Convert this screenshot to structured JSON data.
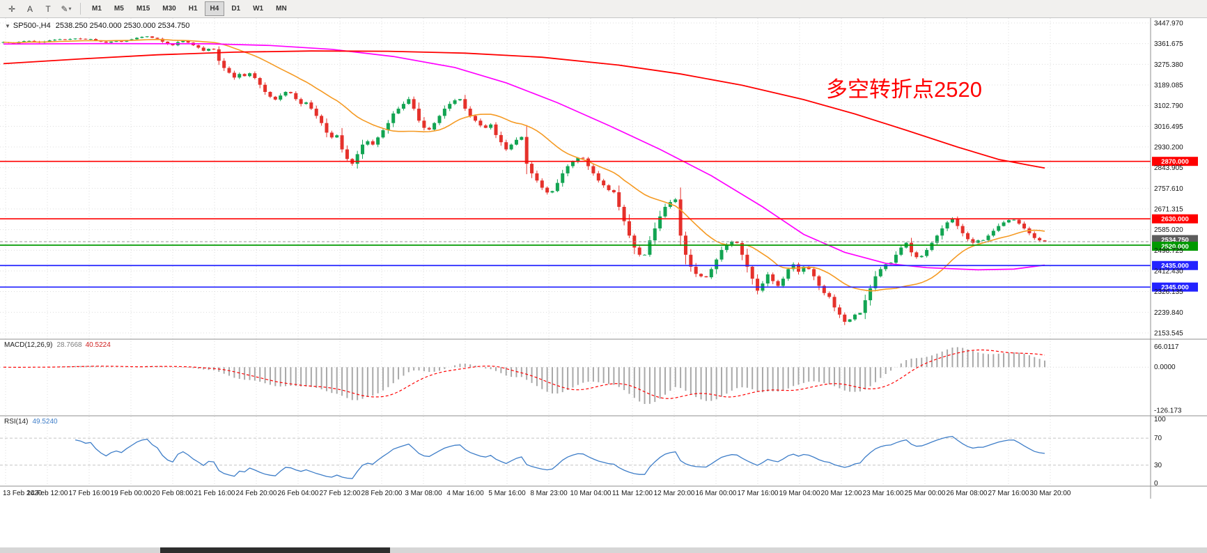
{
  "toolbar": {
    "tools": [
      {
        "name": "crosshair",
        "glyph": "✛"
      },
      {
        "name": "annotate-a",
        "glyph": "A"
      },
      {
        "name": "annotate-t",
        "glyph": "T"
      },
      {
        "name": "draw-pencil",
        "glyph": "✎"
      }
    ],
    "timeframes": [
      "M1",
      "M5",
      "M15",
      "M30",
      "H1",
      "H4",
      "D1",
      "W1",
      "MN"
    ],
    "active_timeframe": "H4"
  },
  "chart_data": {
    "type": "candlestick",
    "symbol_title": "SP500-,H4",
    "ohlc_text": "2538.250 2540.000 2530.000 2534.750",
    "ohlc": {
      "open": 2538.25,
      "high": 2540.0,
      "low": 2530.0,
      "close": 2534.75
    },
    "annotation": {
      "text": "多空转折点2520",
      "color": "#ff0000"
    },
    "y_axis": {
      "max": 3447.97,
      "min": 2153.545,
      "ticks": [
        "3447.970",
        "3361.675",
        "3275.380",
        "3189.085",
        "3102.790",
        "3016.495",
        "2930.200",
        "2843.905",
        "2757.610",
        "2671.315",
        "2585.020",
        "2498.725",
        "2412.430",
        "2326.135",
        "2239.840",
        "2153.545"
      ]
    },
    "x_labels": [
      "13 Feb 2020",
      "14 Feb 12:00",
      "17 Feb 16:00",
      "19 Feb 00:00",
      "20 Feb 08:00",
      "21 Feb 16:00",
      "24 Feb 20:00",
      "26 Feb 04:00",
      "27 Feb 12:00",
      "28 Feb 20:00",
      "3 Mar 08:00",
      "4 Mar 16:00",
      "5 Mar 16:00",
      "8 Mar 23:00",
      "10 Mar 04:00",
      "11 Mar 12:00",
      "12 Mar 20:00",
      "16 Mar 00:00",
      "17 Mar 16:00",
      "19 Mar 04:00",
      "20 Mar 12:00",
      "23 Mar 16:00",
      "25 Mar 00:00",
      "26 Mar 08:00",
      "27 Mar 16:00",
      "30 Mar 20:00"
    ],
    "first_open": 3365,
    "closes": [
      3368,
      3365,
      3362,
      3369,
      3372,
      3373,
      3370,
      3366,
      3371,
      3375,
      3378,
      3380,
      3379,
      3381,
      3383,
      3382,
      3380,
      3381,
      3375,
      3370,
      3366,
      3370,
      3372,
      3370,
      3375,
      3380,
      3386,
      3390,
      3392,
      3386,
      3382,
      3370,
      3360,
      3355,
      3368,
      3373,
      3366,
      3355,
      3345,
      3332,
      3340,
      3338,
      3290,
      3260,
      3240,
      3220,
      3235,
      3226,
      3238,
      3218,
      3190,
      3160,
      3140,
      3128,
      3145,
      3160,
      3155,
      3130,
      3110,
      3116,
      3090,
      3060,
      3030,
      2990,
      2970,
      2979,
      2920,
      2880,
      2860,
      2900,
      2940,
      2954,
      2940,
      2970,
      3000,
      3030,
      3070,
      3090,
      3110,
      3130,
      3090,
      3040,
      3010,
      3003,
      3030,
      3060,
      3090,
      3110,
      3125,
      3130,
      3090,
      3060,
      3040,
      3020,
      3010,
      3024,
      2980,
      2950,
      2920,
      2940,
      2960,
      2972,
      2860,
      2820,
      2790,
      2760,
      2740,
      2746,
      2780,
      2820,
      2850,
      2870,
      2885,
      2882,
      2850,
      2820,
      2790,
      2770,
      2750,
      2741,
      2680,
      2620,
      2560,
      2510,
      2480,
      2480,
      2540,
      2590,
      2640,
      2680,
      2700,
      2711,
      2560,
      2480,
      2430,
      2400,
      2390,
      2386,
      2420,
      2460,
      2500,
      2520,
      2535,
      2529,
      2480,
      2430,
      2380,
      2330,
      2360,
      2398,
      2370,
      2350,
      2380,
      2420,
      2440,
      2409,
      2430,
      2420,
      2390,
      2350,
      2320,
      2304,
      2260,
      2230,
      2200,
      2210,
      2230,
      2237,
      2290,
      2340,
      2390,
      2420,
      2440,
      2447,
      2480,
      2510,
      2530,
      2490,
      2470,
      2475,
      2500,
      2530,
      2560,
      2590,
      2615,
      2630,
      2600,
      2570,
      2545,
      2530,
      2540,
      2541,
      2560,
      2580,
      2600,
      2615,
      2625,
      2626,
      2610,
      2590,
      2570,
      2550,
      2540,
      2534.75
    ],
    "candle_colors": {
      "up": "#12a452",
      "down": "#e5312b"
    },
    "horizontal_lines": [
      {
        "price": 2870,
        "label": "2870.000",
        "color": "#ff0000"
      },
      {
        "price": 2630,
        "label": "2630.000",
        "color": "#ff0000"
      },
      {
        "price": 2520,
        "label": "2520.000",
        "color": "#009900"
      },
      {
        "price": 2435,
        "label": "2435.000",
        "color": "#2323ff"
      },
      {
        "price": 2345,
        "label": "2345.000",
        "color": "#2323ff"
      }
    ],
    "current_price": {
      "value": 2534.75,
      "label": "2534.750",
      "box_color": "#5c5c5c"
    },
    "moving_averages": {
      "fast": {
        "type": "SMA",
        "period": 20,
        "color": "#f59a23"
      },
      "medium": {
        "color": "#ff00ff",
        "points": [
          [
            0,
            3360
          ],
          [
            20,
            3362
          ],
          [
            40,
            3361
          ],
          [
            52,
            3354
          ],
          [
            64,
            3338
          ],
          [
            76,
            3308
          ],
          [
            88,
            3262
          ],
          [
            98,
            3198
          ],
          [
            108,
            3115
          ],
          [
            118,
            3020
          ],
          [
            128,
            2920
          ],
          [
            138,
            2810
          ],
          [
            148,
            2680
          ],
          [
            156,
            2565
          ],
          [
            164,
            2490
          ],
          [
            172,
            2444
          ],
          [
            180,
            2426
          ],
          [
            190,
            2417
          ],
          [
            197,
            2420
          ],
          [
            203,
            2437
          ]
        ]
      },
      "slow": {
        "color": "#ff0000",
        "points": [
          [
            0,
            3278
          ],
          [
            15,
            3298
          ],
          [
            30,
            3315
          ],
          [
            45,
            3326
          ],
          [
            60,
            3331
          ],
          [
            75,
            3330
          ],
          [
            90,
            3322
          ],
          [
            105,
            3305
          ],
          [
            120,
            3272
          ],
          [
            132,
            3235
          ],
          [
            144,
            3188
          ],
          [
            156,
            3128
          ],
          [
            166,
            3068
          ],
          [
            176,
            3000
          ],
          [
            186,
            2930
          ],
          [
            194,
            2878
          ],
          [
            200,
            2854
          ],
          [
            203,
            2842
          ]
        ]
      }
    },
    "indicators": {
      "macd": {
        "label": "MACD(12,26,9)",
        "value_main": "28.7668",
        "value_signal": "40.5224",
        "params": [
          12,
          26,
          9
        ],
        "hist_color": "#a8a8a8",
        "signal_color": "#ff0000",
        "scale": [
          {
            "label": "66.0117",
            "value": 66.0117
          },
          {
            "label": "0.0000",
            "value": 0
          },
          {
            "label": "-126.173",
            "value": -126.173
          }
        ]
      },
      "rsi": {
        "label": "RSI(14)",
        "value": "49.5240",
        "period": 14,
        "color": "#3d7dc8",
        "levels": [
          {
            "label": "100",
            "value": 100
          },
          {
            "label": "70",
            "value": 70
          },
          {
            "label": "30",
            "value": 30
          },
          {
            "label": "0",
            "value": 0
          }
        ]
      }
    }
  }
}
